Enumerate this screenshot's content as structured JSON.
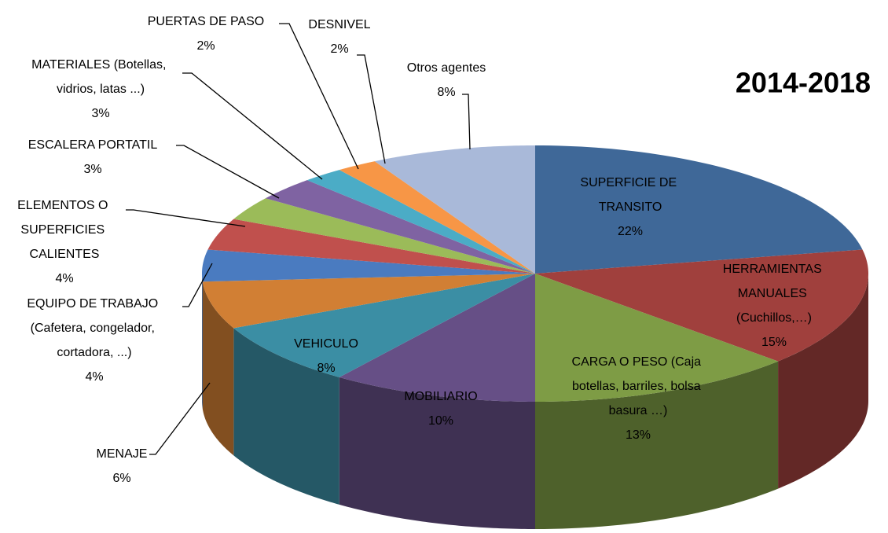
{
  "chart_data": {
    "type": "pie3d",
    "title": "2014-2018",
    "categories": [
      "SUPERFICIE DE TRANSITO",
      "HERRAMIENTAS MANUALES (Cuchillos,…)",
      "CARGA O PESO (Caja botellas, barriles, bolsa basura …)",
      "MOBILIARIO",
      "VEHICULO",
      "MENAJE",
      "EQUIPO DE TRABAJO (Cafetera, congelador, cortadora, ...)",
      "ELEMENTOS O SUPERFICIES CALIENTES",
      "ESCALERA PORTATIL",
      "MATERIALES (Botellas, vidrios, latas ...)",
      "PUERTAS DE PASO",
      "DESNIVEL",
      "Otros agentes"
    ],
    "values": [
      22,
      15,
      13,
      10,
      8,
      6,
      4,
      4,
      3,
      3,
      2,
      2,
      8
    ],
    "value_labels": [
      "22%",
      "15%",
      "13%",
      "10%",
      "8%",
      "6%",
      "4%",
      "4%",
      "3%",
      "3%",
      "2%",
      "2%",
      "8%"
    ],
    "colors": [
      "#3f6898",
      "#a0403d",
      "#7e9c45",
      "#664f86",
      "#3b8ea4",
      "#d17f34",
      "#4a7bc0",
      "#c0504d",
      "#9bbb59",
      "#7f63a2",
      "#4bacc6",
      "#f79646",
      "#a9b9d9"
    ]
  }
}
